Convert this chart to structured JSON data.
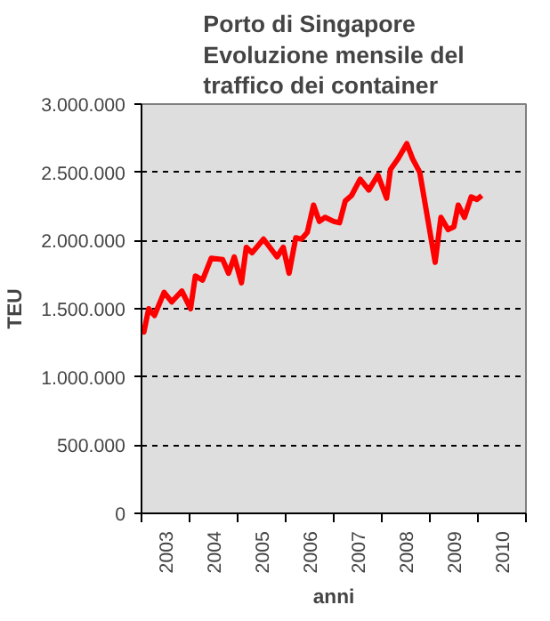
{
  "chart_data": {
    "type": "line",
    "title": "Porto di Singapore\nEvoluzione mensile del\ntraffico dei container",
    "xlabel": "anni",
    "ylabel": "TEU",
    "x": [
      2003.0,
      2003.05,
      2003.15,
      2003.27,
      2003.47,
      2003.63,
      2003.84,
      2004.02,
      2004.12,
      2004.27,
      2004.45,
      2004.69,
      2004.81,
      2004.93,
      2005.08,
      2005.18,
      2005.3,
      2005.54,
      2005.82,
      2005.95,
      2006.07,
      2006.21,
      2006.33,
      2006.45,
      2006.58,
      2006.7,
      2006.82,
      2007.0,
      2007.12,
      2007.24,
      2007.37,
      2007.55,
      2007.73,
      2007.92,
      2008.1,
      2008.18,
      2008.34,
      2008.52,
      2008.64,
      2008.79,
      2008.95,
      2009.11,
      2009.23,
      2009.38,
      2009.5,
      2009.59,
      2009.72,
      2009.86,
      2009.98,
      2010.08
    ],
    "series": [
      {
        "color": "#ff0000",
        "values": [
          1380000,
          1330000,
          1500000,
          1450000,
          1620000,
          1550000,
          1630000,
          1500000,
          1740000,
          1710000,
          1870000,
          1860000,
          1760000,
          1880000,
          1690000,
          1950000,
          1910000,
          2010000,
          1880000,
          1950000,
          1760000,
          2020000,
          2010000,
          2060000,
          2260000,
          2140000,
          2170000,
          2140000,
          2130000,
          2290000,
          2330000,
          2450000,
          2370000,
          2480000,
          2310000,
          2520000,
          2600000,
          2710000,
          2600000,
          2500000,
          2170000,
          1840000,
          2170000,
          2080000,
          2100000,
          2260000,
          2170000,
          2320000,
          2300000,
          2330000
        ]
      }
    ],
    "xlim": [
      2003,
      2011
    ],
    "xticks": [
      {
        "value": 2003,
        "label": null
      },
      {
        "value": 2003.5,
        "label": "2003"
      },
      {
        "value": 2004,
        "label": null
      },
      {
        "value": 2004.5,
        "label": "2004"
      },
      {
        "value": 2005,
        "label": null
      },
      {
        "value": 2005.5,
        "label": "2005"
      },
      {
        "value": 2006,
        "label": null
      },
      {
        "value": 2006.5,
        "label": "2006"
      },
      {
        "value": 2007,
        "label": null
      },
      {
        "value": 2007.5,
        "label": "2007"
      },
      {
        "value": 2008,
        "label": null
      },
      {
        "value": 2008.5,
        "label": "2008"
      },
      {
        "value": 2009,
        "label": null
      },
      {
        "value": 2009.5,
        "label": "2009"
      },
      {
        "value": 2010,
        "label": null
      },
      {
        "value": 2010.5,
        "label": "2010"
      },
      {
        "value": 2011,
        "label": null
      }
    ],
    "ylim": [
      0,
      3000000
    ],
    "yticks": [
      {
        "value": 0,
        "label": "0"
      },
      {
        "value": 500000,
        "label": "500.000"
      },
      {
        "value": 1000000,
        "label": "1.000.000"
      },
      {
        "value": 1500000,
        "label": "1.500.000"
      },
      {
        "value": 2000000,
        "label": "2.000.000"
      },
      {
        "value": 2500000,
        "label": "2.500.000"
      },
      {
        "value": 3000000,
        "label": "3.000.000"
      }
    ],
    "grid": "y",
    "line_style": "solid",
    "marker": "none"
  }
}
